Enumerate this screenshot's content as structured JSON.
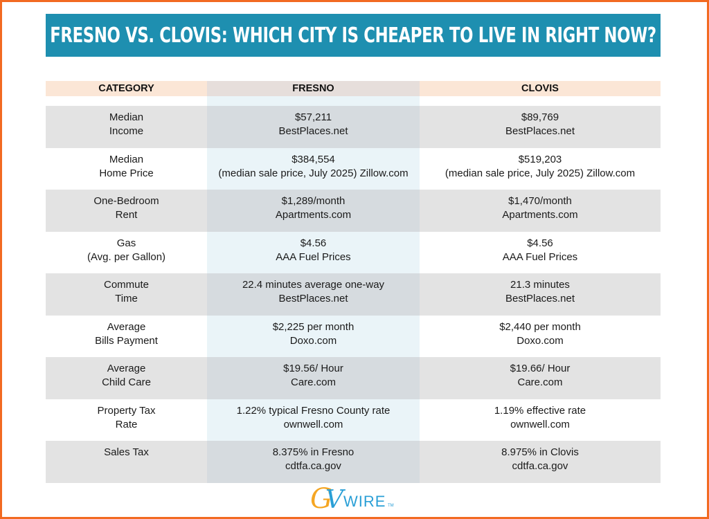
{
  "title": "FRESNO VS. CLOVIS: WHICH CITY IS CHEAPER TO LIVE IN RIGHT NOW?",
  "headers": [
    "CATEGORY",
    "FRESNO",
    "CLOVIS"
  ],
  "rows": [
    {
      "category": [
        "Median",
        "Income"
      ],
      "fresno": [
        "$57,211",
        "BestPlaces.net"
      ],
      "clovis": [
        "$89,769",
        "BestPlaces.net"
      ]
    },
    {
      "category": [
        "Median",
        "Home Price"
      ],
      "fresno": [
        "$384,554",
        "(median sale price, July 2025) Zillow.com"
      ],
      "clovis": [
        "$519,203",
        "(median sale price, July 2025) Zillow.com"
      ]
    },
    {
      "category": [
        "One-Bedroom",
        "Rent"
      ],
      "fresno": [
        "$1,289/month",
        "Apartments.com"
      ],
      "clovis": [
        "$1,470/month",
        "Apartments.com"
      ]
    },
    {
      "category": [
        "Gas",
        "(Avg. per Gallon)"
      ],
      "fresno": [
        "$4.56",
        "AAA Fuel Prices"
      ],
      "clovis": [
        "$4.56",
        "AAA Fuel Prices"
      ]
    },
    {
      "category": [
        "Commute",
        "Time"
      ],
      "fresno": [
        "22.4 minutes average one-way",
        "BestPlaces.net"
      ],
      "clovis": [
        "21.3 minutes",
        "BestPlaces.net"
      ]
    },
    {
      "category": [
        "Average",
        "Bills Payment"
      ],
      "fresno": [
        "$2,225 per month",
        "Doxo.com"
      ],
      "clovis": [
        "$2,440 per month",
        "Doxo.com"
      ]
    },
    {
      "category": [
        "Average",
        "Child Care"
      ],
      "fresno": [
        "$19.56/ Hour",
        "Care.com"
      ],
      "clovis": [
        "$19.66/ Hour",
        "Care.com"
      ]
    },
    {
      "category": [
        "Property Tax",
        "Rate"
      ],
      "fresno": [
        "1.22% typical Fresno County rate",
        "ownwell.com"
      ],
      "clovis": [
        "1.19% effective rate",
        "ownwell.com"
      ]
    },
    {
      "category": [
        "Sales Tax"
      ],
      "fresno": [
        "8.375% in Fresno",
        "cdtfa.ca.gov"
      ],
      "clovis": [
        "8.975% in Clovis",
        "cdtfa.ca.gov"
      ]
    }
  ],
  "logo": {
    "text": "GVWIRE",
    "mark": "TM"
  },
  "colors": {
    "border": "#f26a21",
    "banner": "#1e8fb0",
    "header_bg": "#fbe6d6",
    "logo_orange": "#f5a623",
    "logo_blue": "#2a9fd6"
  }
}
